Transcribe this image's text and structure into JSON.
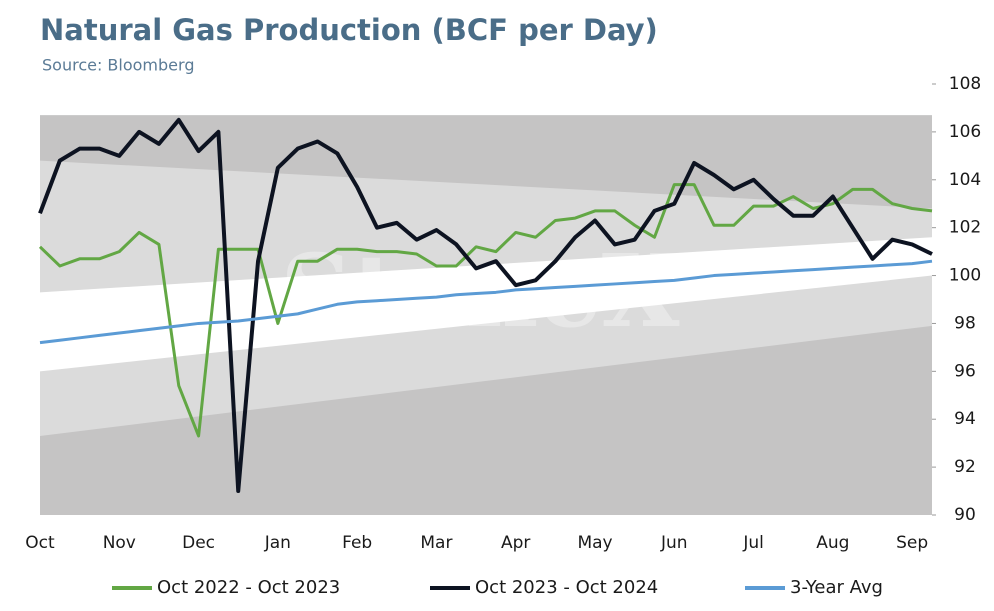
{
  "chart_data": {
    "type": "line",
    "title": "Natural Gas Production (BCF per Day)",
    "subtitle": "Source: Bloomberg",
    "watermark": "StoneX",
    "categories": [
      "Oct",
      null,
      null,
      null,
      "Nov",
      null,
      null,
      null,
      "Dec",
      null,
      null,
      null,
      "Jan",
      null,
      null,
      null,
      "Feb",
      null,
      null,
      null,
      "Mar",
      null,
      null,
      null,
      "Apr",
      null,
      null,
      null,
      "May",
      null,
      null,
      null,
      "Jun",
      null,
      null,
      null,
      "Jul",
      null,
      null,
      null,
      "Aug",
      null,
      null,
      null,
      "Sep",
      null
    ],
    "ylim": [
      90,
      108
    ],
    "yticks": [
      90,
      92,
      94,
      96,
      98,
      100,
      102,
      104,
      106,
      108
    ],
    "legend": "bottom",
    "bands": [
      {
        "color": "#c5c4c4",
        "upper": [
          106.7,
          106.7
        ],
        "lower": [
          90,
          90
        ]
      },
      {
        "color": "#dbdbdb",
        "upper": [
          104.8,
          102.8
        ],
        "lower": [
          93.3,
          97.9
        ]
      },
      {
        "color": "#ffffff",
        "upper": [
          99.3,
          101.6
        ],
        "lower": [
          96.0,
          100.0
        ]
      }
    ],
    "series": [
      {
        "name": "Oct 2022 - Oct 2023",
        "color": "#62a744",
        "values": [
          101.2,
          100.4,
          100.7,
          100.7,
          101.0,
          101.8,
          101.3,
          95.4,
          93.3,
          101.1,
          101.1,
          101.1,
          98.0,
          100.6,
          100.6,
          101.1,
          101.1,
          101.0,
          101.0,
          100.9,
          100.4,
          100.4,
          101.2,
          101.0,
          101.8,
          101.6,
          102.3,
          102.4,
          102.7,
          102.7,
          102.1,
          101.6,
          103.8,
          103.8,
          102.1,
          102.1,
          102.9,
          102.9,
          103.3,
          102.8,
          103.0,
          103.6,
          103.6,
          103.0,
          102.8,
          102.7
        ]
      },
      {
        "name": "Oct 2023 - Oct 2024",
        "color": "#0d1321",
        "values": [
          102.6,
          104.8,
          105.3,
          105.3,
          105.0,
          106.0,
          105.5,
          106.5,
          105.2,
          106.0,
          91.0,
          100.6,
          104.5,
          105.3,
          105.6,
          105.1,
          103.7,
          102.0,
          102.2,
          101.5,
          101.9,
          101.3,
          100.3,
          100.6,
          99.6,
          99.8,
          100.6,
          101.6,
          102.3,
          101.3,
          101.5,
          102.7,
          103.0,
          104.7,
          104.2,
          103.6,
          104.0,
          103.2,
          102.5,
          102.5,
          103.3,
          102.0,
          100.7,
          101.5,
          101.3,
          100.9
        ]
      },
      {
        "name": "3-Year Avg",
        "color": "#5b9bd5",
        "values": [
          97.2,
          97.3,
          97.4,
          97.5,
          97.6,
          97.7,
          97.8,
          97.9,
          98.0,
          98.05,
          98.1,
          98.2,
          98.3,
          98.4,
          98.6,
          98.8,
          98.9,
          98.95,
          99.0,
          99.05,
          99.1,
          99.2,
          99.25,
          99.3,
          99.4,
          99.45,
          99.5,
          99.55,
          99.6,
          99.65,
          99.7,
          99.75,
          99.8,
          99.9,
          100.0,
          100.05,
          100.1,
          100.15,
          100.2,
          100.25,
          100.3,
          100.35,
          100.4,
          100.45,
          100.5,
          100.6
        ]
      }
    ]
  }
}
